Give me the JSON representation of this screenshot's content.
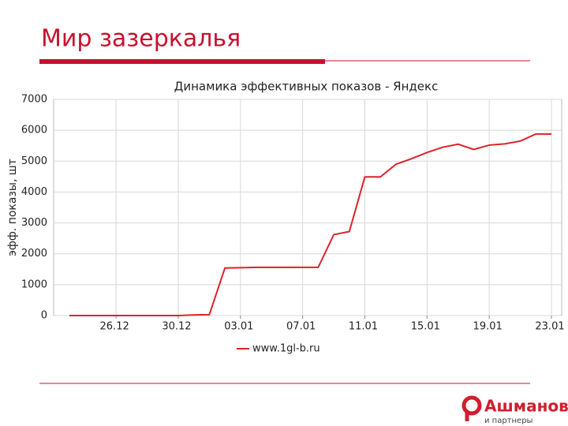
{
  "slide": {
    "title": "Мир зазеркалья"
  },
  "logo": {
    "name": "Ашманов",
    "tagline": "и партнеры"
  },
  "chart_data": {
    "type": "line",
    "title": "Динамика эффективных показов - Яндекс",
    "y_label": "эфф. показы, шт",
    "categories": [
      null,
      null,
      null,
      "26.12",
      null,
      null,
      null,
      "30.12",
      null,
      null,
      null,
      "03.01",
      null,
      null,
      null,
      "07.01",
      null,
      null,
      null,
      "11.01",
      null,
      null,
      null,
      "15.01",
      null,
      null,
      null,
      "19.01",
      null,
      null,
      null,
      "23.01"
    ],
    "series": [
      {
        "name": "www.1gl-b.ru",
        "color": "#e0202a",
        "values": [
          0,
          0,
          0,
          0,
          0,
          0,
          0,
          0,
          20,
          30,
          1540,
          1550,
          1560,
          1560,
          1560,
          1560,
          1560,
          2620,
          2720,
          4490,
          4490,
          4900,
          5080,
          5280,
          5450,
          5550,
          5380,
          5520,
          5560,
          5650,
          5880,
          5880
        ]
      }
    ],
    "ylim": [
      0,
      7000
    ],
    "yticks": [
      0,
      1000,
      2000,
      3000,
      4000,
      5000,
      6000,
      7000
    ],
    "grid": true,
    "legend": "bottom"
  }
}
